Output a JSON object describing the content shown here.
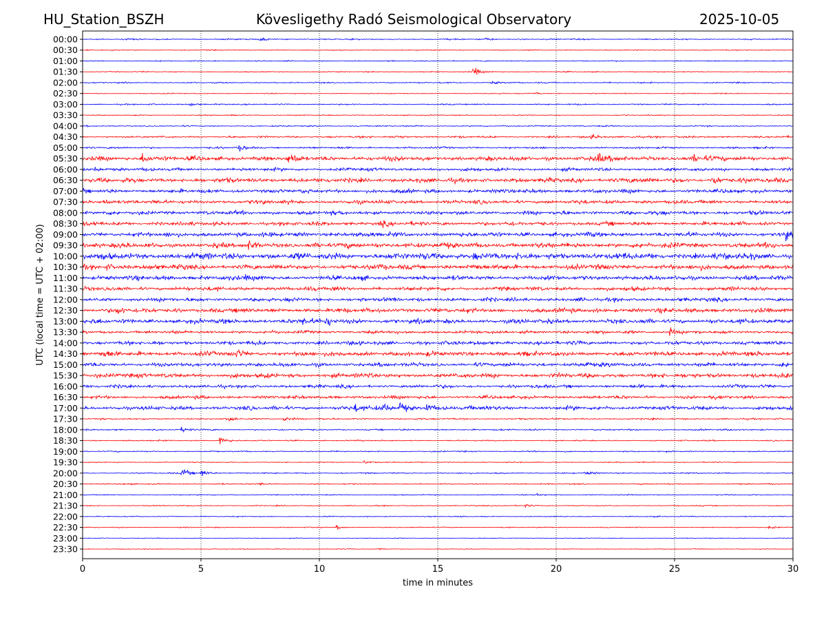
{
  "header": {
    "station": "HU_Station_BSZH",
    "title": "Kövesligethy Radó Seismological Observatory",
    "date": "2025-10-05"
  },
  "chart_data": {
    "type": "line",
    "title": "Kövesligethy Radó Seismological Observatory",
    "xlabel": "time in minutes",
    "ylabel": "UTC (local time = UTC + 02:00)",
    "xlim": [
      0,
      30
    ],
    "xticks": [
      "0",
      "5",
      "10",
      "15",
      "20",
      "25",
      "30"
    ],
    "grid": "vertical dotted at 5-minute intervals",
    "colors": [
      "#0000ff",
      "#ff0000"
    ],
    "amplitude_unit": "relative",
    "rows": [
      {
        "label": "00:00",
        "noise": 0.1,
        "events": [
          [
            7.5,
            0.3
          ],
          [
            17.0,
            0.25
          ]
        ]
      },
      {
        "label": "00:30",
        "noise": 0.08,
        "events": []
      },
      {
        "label": "01:00",
        "noise": 0.08,
        "events": []
      },
      {
        "label": "01:30",
        "noise": 0.08,
        "events": [
          [
            16.5,
            0.9
          ]
        ]
      },
      {
        "label": "02:00",
        "noise": 0.1,
        "events": [
          [
            17.3,
            0.3
          ]
        ]
      },
      {
        "label": "02:30",
        "noise": 0.08,
        "events": [
          [
            19.1,
            0.2
          ]
        ]
      },
      {
        "label": "03:00",
        "noise": 0.1,
        "events": [
          [
            4.5,
            0.4
          ]
        ]
      },
      {
        "label": "03:30",
        "noise": 0.08,
        "events": []
      },
      {
        "label": "04:00",
        "noise": 0.1,
        "events": []
      },
      {
        "label": "04:30",
        "noise": 0.15,
        "events": [
          [
            13.2,
            0.4
          ],
          [
            21.5,
            0.4
          ],
          [
            23.2,
            0.3
          ]
        ]
      },
      {
        "label": "05:00",
        "noise": 0.15,
        "events": [
          [
            6.6,
            0.5
          ]
        ]
      },
      {
        "label": "05:30",
        "noise": 0.35,
        "events": [
          [
            2.5,
            1.0
          ],
          [
            8.7,
            0.8
          ],
          [
            21.7,
            1.2
          ],
          [
            25.8,
            0.8
          ]
        ]
      },
      {
        "label": "06:00",
        "noise": 0.25,
        "events": [
          [
            0.5,
            0.4
          ]
        ]
      },
      {
        "label": "06:30",
        "noise": 0.35,
        "events": [
          [
            26.6,
            0.9
          ],
          [
            23.0,
            0.5
          ]
        ]
      },
      {
        "label": "07:00",
        "noise": 0.3,
        "events": []
      },
      {
        "label": "07:30",
        "noise": 0.3,
        "events": [
          [
            0.9,
            0.5
          ]
        ]
      },
      {
        "label": "08:00",
        "noise": 0.3,
        "events": []
      },
      {
        "label": "08:30",
        "noise": 0.3,
        "events": [
          [
            12.6,
            0.4
          ]
        ]
      },
      {
        "label": "09:00",
        "noise": 0.35,
        "events": [
          [
            29.7,
            0.6
          ]
        ]
      },
      {
        "label": "09:30",
        "noise": 0.4,
        "events": [
          [
            7.0,
            0.5
          ]
        ]
      },
      {
        "label": "10:00",
        "noise": 0.5,
        "events": [
          [
            16.5,
            0.6
          ]
        ]
      },
      {
        "label": "10:30",
        "noise": 0.4,
        "events": [
          [
            1.0,
            0.5
          ]
        ]
      },
      {
        "label": "11:00",
        "noise": 0.35,
        "events": [
          [
            6.8,
            0.5
          ]
        ]
      },
      {
        "label": "11:30",
        "noise": 0.3,
        "events": [
          [
            10.5,
            0.4
          ]
        ]
      },
      {
        "label": "12:00",
        "noise": 0.3,
        "events": []
      },
      {
        "label": "12:30",
        "noise": 0.35,
        "events": [
          [
            1.5,
            0.5
          ]
        ]
      },
      {
        "label": "13:00",
        "noise": 0.35,
        "events": [
          [
            9.3,
            0.7
          ],
          [
            10.3,
            0.5
          ]
        ]
      },
      {
        "label": "13:30",
        "noise": 0.25,
        "events": [
          [
            24.8,
            0.6
          ]
        ]
      },
      {
        "label": "14:00",
        "noise": 0.3,
        "events": []
      },
      {
        "label": "14:30",
        "noise": 0.35,
        "events": [
          [
            6.5,
            0.5
          ],
          [
            0.9,
            0.4
          ]
        ]
      },
      {
        "label": "15:00",
        "noise": 0.3,
        "events": [
          [
            29.5,
            0.8
          ],
          [
            21.2,
            0.5
          ]
        ]
      },
      {
        "label": "15:30",
        "noise": 0.35,
        "events": [
          [
            0.5,
            0.4
          ]
        ]
      },
      {
        "label": "16:00",
        "noise": 0.25,
        "events": []
      },
      {
        "label": "16:30",
        "noise": 0.25,
        "events": [
          [
            26.5,
            0.4
          ]
        ]
      },
      {
        "label": "17:00",
        "noise": 0.3,
        "events": [
          [
            11.5,
            0.7
          ],
          [
            12.7,
            0.7
          ],
          [
            13.4,
            1.0
          ],
          [
            14.5,
            0.8
          ],
          [
            17.0,
            0.5
          ]
        ]
      },
      {
        "label": "17:30",
        "noise": 0.12,
        "events": [
          [
            6.2,
            0.4
          ],
          [
            8.5,
            0.4
          ]
        ]
      },
      {
        "label": "18:00",
        "noise": 0.12,
        "events": [
          [
            4.2,
            0.45
          ]
        ]
      },
      {
        "label": "18:30",
        "noise": 0.1,
        "events": [
          [
            5.8,
            0.8
          ]
        ]
      },
      {
        "label": "19:00",
        "noise": 0.1,
        "events": []
      },
      {
        "label": "19:30",
        "noise": 0.08,
        "events": [
          [
            11.9,
            0.3
          ]
        ]
      },
      {
        "label": "20:00",
        "noise": 0.1,
        "events": [
          [
            4.2,
            1.0
          ],
          [
            5.0,
            0.7
          ],
          [
            21.2,
            0.3
          ]
        ]
      },
      {
        "label": "20:30",
        "noise": 0.1,
        "events": [
          [
            7.5,
            0.3
          ]
        ]
      },
      {
        "label": "21:00",
        "noise": 0.08,
        "events": [
          [
            19.2,
            0.3
          ]
        ]
      },
      {
        "label": "21:30",
        "noise": 0.08,
        "events": [
          [
            18.7,
            0.3
          ]
        ]
      },
      {
        "label": "22:00",
        "noise": 0.08,
        "events": []
      },
      {
        "label": "22:30",
        "noise": 0.08,
        "events": [
          [
            10.7,
            0.3
          ],
          [
            29.0,
            0.3
          ]
        ]
      },
      {
        "label": "23:00",
        "noise": 0.06,
        "events": []
      },
      {
        "label": "23:30",
        "noise": 0.06,
        "events": [
          [
            12.5,
            0.2
          ]
        ]
      }
    ]
  }
}
